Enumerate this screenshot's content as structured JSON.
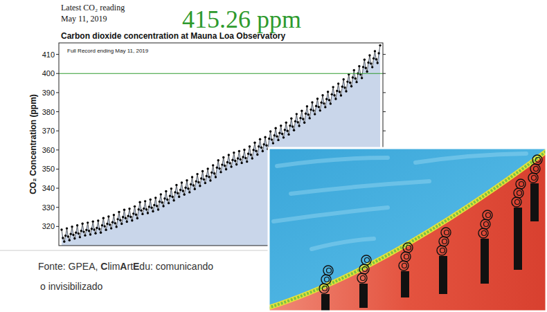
{
  "header": {
    "reading_label": "Latest CO₂ reading",
    "date": "May 11, 2019",
    "reading": "415.26 ppm"
  },
  "chart_data": {
    "type": "area",
    "title": "Carbon dioxide concentration at Mauna Loa Observatory",
    "y_label": "CO₂ Concentration (ppm)",
    "annotation": "Full Record ending May 11, 2019",
    "color": "#000000",
    "marker": "circle",
    "grid": false,
    "tick_labels": "y",
    "ylim": [
      310,
      416
    ],
    "yticks": [
      320,
      330,
      340,
      350,
      360,
      370,
      380,
      390,
      400,
      410
    ],
    "hline": 400,
    "categories": [
      null,
      null,
      null,
      null,
      null,
      null,
      null,
      null,
      null,
      null,
      null,
      null,
      null,
      null,
      null,
      null,
      null,
      null,
      null,
      null,
      null,
      null,
      null,
      null,
      null,
      null,
      null,
      null,
      null,
      null,
      null,
      null,
      null,
      null,
      null,
      null,
      null,
      null,
      null,
      null,
      null,
      null,
      null,
      null,
      null,
      null,
      null,
      null,
      null,
      null,
      null,
      null,
      null,
      null,
      null,
      null,
      null,
      null,
      null,
      null,
      null,
      null,
      null,
      null,
      null,
      null,
      null,
      null,
      null,
      null,
      null,
      null,
      null,
      null,
      null,
      null,
      null,
      null,
      null,
      null,
      null,
      null,
      null,
      null,
      null,
      null,
      null,
      null,
      null,
      null,
      null,
      null,
      null,
      null,
      null,
      null,
      null,
      null,
      null,
      null,
      null,
      null,
      null,
      null,
      null,
      null,
      null,
      null,
      null,
      null,
      null,
      null,
      null,
      null,
      null,
      null,
      null,
      null,
      null,
      null,
      null,
      null,
      null,
      null,
      null,
      null,
      null,
      null,
      null,
      null,
      null,
      null,
      null,
      null,
      null,
      null,
      null,
      null,
      null,
      null,
      null,
      null,
      null,
      null,
      null,
      null,
      null,
      null,
      null,
      null,
      null,
      null,
      null,
      null,
      null,
      null,
      null,
      null,
      null,
      null,
      null,
      null,
      null,
      null,
      null,
      null,
      null,
      null,
      null,
      null,
      null,
      null,
      null,
      null,
      null,
      null,
      null,
      null,
      null,
      null,
      null,
      null,
      null,
      null,
      null,
      null,
      null,
      null,
      null,
      null,
      null,
      null,
      null,
      null,
      null,
      null,
      null,
      null,
      null,
      null,
      null,
      null,
      null,
      null,
      null,
      null,
      null,
      null,
      null,
      null,
      null,
      null,
      null,
      null,
      null,
      null,
      null,
      null,
      null,
      null,
      null,
      null,
      null,
      null,
      null,
      null,
      null,
      null,
      null,
      null,
      null,
      null,
      null,
      null,
      null,
      null,
      null,
      null,
      null,
      null,
      null,
      null,
      null,
      null,
      null
    ],
    "values": [
      318.3,
      314.0,
      312.1,
      315.2,
      319.0,
      314.7,
      312.8,
      316.1,
      319.9,
      315.6,
      313.7,
      316.8,
      320.6,
      316.3,
      314.4,
      317.7,
      321.5,
      317.2,
      315.3,
      318.2,
      322.0,
      317.7,
      315.8,
      318.8,
      322.6,
      318.3,
      316.4,
      319.2,
      323.0,
      318.7,
      316.8,
      320.6,
      324.4,
      320.1,
      318.2,
      321.4,
      325.2,
      320.9,
      319.0,
      322.2,
      326.0,
      321.7,
      319.8,
      323.8,
      327.6,
      323.3,
      321.4,
      324.9,
      328.7,
      324.4,
      322.5,
      325.5,
      329.3,
      325.0,
      323.1,
      326.7,
      330.5,
      326.2,
      324.3,
      328.9,
      332.7,
      328.4,
      326.5,
      329.4,
      333.2,
      328.9,
      327.0,
      330.3,
      334.1,
      329.8,
      327.9,
      331.2,
      335.0,
      330.7,
      328.8,
      333.0,
      336.8,
      332.5,
      330.6,
      334.6,
      338.4,
      334.1,
      332.2,
      336.0,
      339.8,
      335.5,
      333.6,
      337.9,
      341.7,
      337.4,
      335.5,
      339.1,
      342.9,
      338.6,
      336.7,
      340.3,
      344.1,
      339.8,
      337.9,
      342.0,
      345.8,
      341.5,
      339.6,
      343.6,
      347.4,
      343.1,
      341.2,
      345.1,
      348.9,
      344.6,
      342.7,
      346.4,
      350.2,
      345.9,
      344.0,
      348.2,
      352.0,
      347.7,
      345.8,
      350.8,
      354.6,
      350.3,
      348.4,
      352.3,
      356.1,
      351.8,
      349.9,
      353.6,
      357.4,
      353.1,
      351.2,
      354.8,
      358.6,
      354.3,
      352.4,
      355.6,
      359.4,
      355.1,
      353.2,
      356.3,
      360.1,
      355.8,
      353.9,
      358.0,
      361.8,
      357.5,
      355.6,
      360.0,
      363.8,
      359.5,
      357.6,
      361.8,
      365.6,
      361.3,
      359.4,
      362.9,
      366.7,
      362.4,
      360.5,
      365.9,
      369.7,
      365.4,
      363.5,
      367.6,
      371.4,
      367.1,
      365.2,
      368.9,
      372.7,
      368.4,
      366.5,
      370.5,
      374.3,
      370.0,
      368.1,
      372.7,
      376.5,
      372.2,
      370.3,
      375.0,
      378.8,
      374.5,
      372.6,
      376.7,
      380.5,
      376.2,
      374.3,
      379.0,
      382.8,
      378.5,
      376.6,
      381.1,
      384.9,
      380.6,
      378.7,
      383.0,
      386.8,
      382.5,
      380.6,
      384.8,
      388.6,
      384.3,
      382.4,
      386.6,
      390.4,
      386.1,
      384.2,
      389.1,
      392.9,
      388.6,
      386.7,
      390.9,
      394.7,
      390.4,
      388.5,
      393.1,
      396.9,
      392.6,
      390.7,
      395.7,
      399.5,
      395.2,
      393.3,
      397.9,
      401.7,
      397.4,
      395.5,
      400.0,
      403.8,
      399.5,
      397.6,
      403.4,
      407.2,
      402.9,
      401.0,
      405.7,
      409.5,
      405.2,
      403.3,
      407.9,
      411.7,
      407.4,
      405.5,
      410.6,
      414.7
    ]
  },
  "caption": {
    "lines": [
      "Fonte: GPEA, ClimArtEdu: comunicando",
      "o invisibilizado"
    ]
  }
}
